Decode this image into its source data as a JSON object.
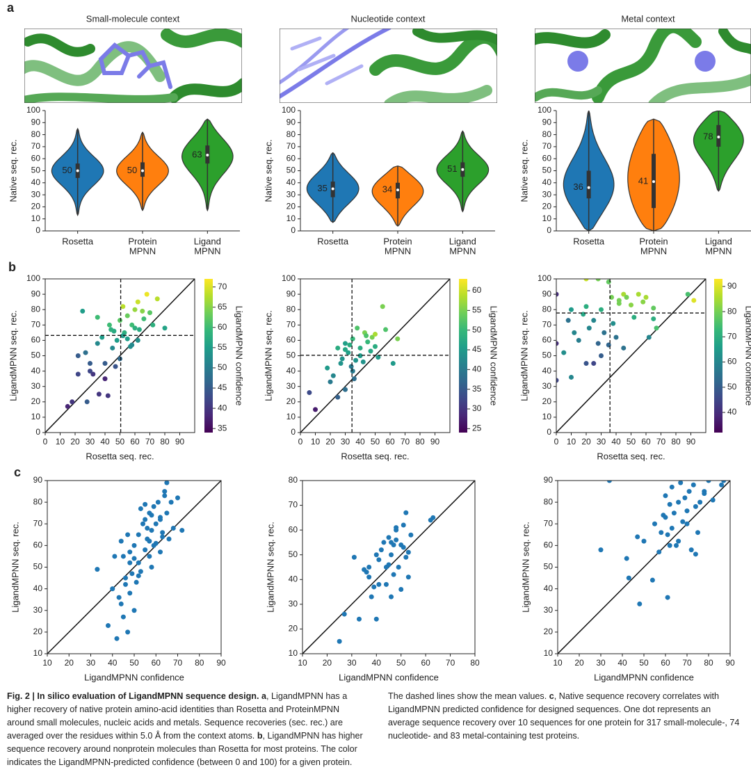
{
  "panel_labels": [
    "a",
    "b",
    "c"
  ],
  "contexts": [
    "Small-molecule context",
    "Nucleotide context",
    "Metal context"
  ],
  "chart_data": [
    {
      "type": "violin",
      "ylabel": "Native seq. rec.",
      "categories": [
        "Rosetta",
        [
          "Protein",
          "MPNN"
        ],
        [
          "Ligand",
          "MPNN"
        ]
      ],
      "values": [
        50,
        50,
        63
      ],
      "whisker_low": [
        13,
        17,
        17
      ],
      "q1": [
        44,
        45,
        56
      ],
      "q3": [
        56,
        57,
        71
      ],
      "whisker_high": [
        85,
        82,
        93
      ],
      "colors": [
        "#1f77b4",
        "#ff7f0e",
        "#2ca02c"
      ],
      "ylim": [
        0,
        100
      ],
      "yticks": [
        0,
        10,
        20,
        30,
        40,
        50,
        60,
        70,
        80,
        90,
        100
      ]
    },
    {
      "type": "violin",
      "ylabel": "Native seq. rec.",
      "categories": [
        "Rosetta",
        [
          "Protein",
          "MPNN"
        ],
        [
          "Ligand",
          "MPNN"
        ]
      ],
      "values": [
        35,
        34,
        51
      ],
      "whisker_low": [
        7,
        4,
        16
      ],
      "q1": [
        28,
        27,
        45
      ],
      "q3": [
        41,
        40,
        57
      ],
      "whisker_high": [
        65,
        54,
        83
      ],
      "colors": [
        "#1f77b4",
        "#ff7f0e",
        "#2ca02c"
      ],
      "ylim": [
        0,
        100
      ],
      "yticks": [
        0,
        10,
        20,
        30,
        40,
        50,
        60,
        70,
        80,
        90,
        100
      ]
    },
    {
      "type": "violin",
      "ylabel": "Native seq. rec.",
      "categories": [
        "Rosetta",
        [
          "Protein",
          "MPNN"
        ],
        [
          "Ligand",
          "MPNN"
        ]
      ],
      "values": [
        36,
        41,
        78
      ],
      "whisker_low": [
        0,
        0,
        33
      ],
      "q1": [
        27,
        19,
        70
      ],
      "q3": [
        50,
        64,
        88
      ],
      "whisker_high": [
        100,
        93,
        100
      ],
      "colors": [
        "#1f77b4",
        "#ff7f0e",
        "#2ca02c"
      ],
      "ylim": [
        0,
        100
      ],
      "yticks": [
        0,
        10,
        20,
        30,
        40,
        50,
        60,
        70,
        80,
        90,
        100
      ]
    },
    {
      "type": "scatter",
      "xlabel": "Rosetta seq. rec.",
      "ylabel": "LigandMPNN seq. rec.",
      "colormap": "viridis",
      "identity_line": true,
      "x": [
        15,
        18,
        22,
        25,
        28,
        30,
        32,
        35,
        36,
        38,
        40,
        42,
        43,
        45,
        46,
        48,
        50,
        50,
        52,
        53,
        55,
        55,
        57,
        58,
        60,
        60,
        62,
        63,
        65,
        66,
        68,
        70,
        72,
        75,
        80,
        22,
        30,
        40,
        47,
        58,
        35,
        44,
        52,
        62,
        27
      ],
      "values": [
        17,
        20,
        38,
        79,
        20,
        45,
        38,
        58,
        25,
        62,
        45,
        24,
        70,
        55,
        66,
        60,
        73,
        48,
        82,
        65,
        61,
        76,
        56,
        70,
        80,
        68,
        85,
        67,
        79,
        74,
        90,
        78,
        70,
        87,
        68,
        50,
        40,
        35,
        43,
        57,
        75,
        67,
        63,
        60,
        52
      ],
      "c": [
        38,
        40,
        42,
        55,
        45,
        45,
        40,
        52,
        40,
        55,
        45,
        40,
        60,
        52,
        57,
        55,
        62,
        47,
        68,
        58,
        55,
        63,
        53,
        60,
        66,
        58,
        69,
        57,
        65,
        60,
        71,
        62,
        58,
        68,
        56,
        45,
        42,
        38,
        44,
        52,
        60,
        58,
        55,
        53,
        48
      ],
      "mean_x": 50.5,
      "mean_y": 63.2,
      "xlim": [
        0,
        100
      ],
      "xticks": [
        0,
        10,
        20,
        30,
        40,
        50,
        60,
        70,
        80,
        90
      ],
      "ylim": [
        0,
        100
      ],
      "yticks": [
        0,
        10,
        20,
        30,
        40,
        50,
        60,
        70,
        80,
        90,
        100
      ],
      "colorbar": {
        "label": "LigandMPNN confidence",
        "lim": [
          34,
          72
        ],
        "ticks": [
          35,
          40,
          45,
          50,
          55,
          60,
          65,
          70
        ]
      }
    },
    {
      "type": "scatter",
      "xlabel": "Rosetta seq. rec.",
      "ylabel": "LigandMPNN seq. rec.",
      "colormap": "viridis",
      "identity_line": true,
      "x": [
        6,
        10,
        18,
        20,
        22,
        25,
        27,
        28,
        30,
        30,
        32,
        33,
        34,
        35,
        35,
        37,
        38,
        40,
        40,
        42,
        43,
        45,
        47,
        48,
        50,
        50,
        52,
        55,
        57,
        62,
        65,
        25,
        36,
        44,
        30
      ],
      "values": [
        26,
        15,
        42,
        33,
        37,
        23,
        45,
        48,
        28,
        54,
        52,
        57,
        43,
        40,
        61,
        47,
        68,
        50,
        55,
        46,
        65,
        59,
        53,
        62,
        56,
        64,
        49,
        82,
        67,
        45,
        61,
        55,
        35,
        63,
        58
      ],
      "c": [
        33,
        27,
        45,
        40,
        42,
        36,
        44,
        44,
        38,
        47,
        46,
        48,
        40,
        40,
        50,
        44,
        52,
        45,
        48,
        44,
        55,
        50,
        47,
        55,
        48,
        58,
        45,
        55,
        52,
        45,
        55,
        48,
        38,
        52,
        46
      ],
      "mean_x": 34.5,
      "mean_y": 50.3,
      "xlim": [
        0,
        100
      ],
      "xticks": [
        0,
        10,
        20,
        30,
        40,
        50,
        60,
        70,
        80,
        90
      ],
      "ylim": [
        0,
        100
      ],
      "yticks": [
        0,
        10,
        20,
        30,
        40,
        50,
        60,
        70,
        80,
        90,
        100
      ],
      "colorbar": {
        "label": "LigandMPNN confidence",
        "lim": [
          24,
          63
        ],
        "ticks": [
          25,
          30,
          35,
          40,
          45,
          50,
          55,
          60
        ]
      }
    },
    {
      "type": "scatter",
      "xlabel": "Rosetta seq. rec.",
      "ylabel": "LigandMPNN seq. rec.",
      "colormap": "viridis",
      "identity_line": true,
      "x": [
        0,
        0,
        0,
        5,
        8,
        10,
        12,
        15,
        18,
        20,
        20,
        22,
        25,
        25,
        28,
        30,
        30,
        32,
        35,
        35,
        37,
        38,
        40,
        42,
        45,
        45,
        47,
        50,
        52,
        55,
        58,
        60,
        62,
        65,
        67,
        20,
        28,
        42,
        88,
        92,
        65,
        10
      ],
      "values": [
        34,
        58,
        90,
        52,
        73,
        36,
        65,
        60,
        77,
        45,
        82,
        68,
        45,
        73,
        58,
        50,
        80,
        65,
        57,
        98,
        88,
        71,
        62,
        86,
        55,
        90,
        88,
        83,
        75,
        90,
        85,
        88,
        62,
        81,
        68,
        100,
        100,
        84,
        90,
        86,
        74,
        80
      ],
      "c": [
        45,
        40,
        40,
        62,
        55,
        60,
        60,
        58,
        68,
        48,
        70,
        60,
        45,
        60,
        52,
        50,
        70,
        55,
        52,
        78,
        80,
        62,
        55,
        80,
        55,
        85,
        80,
        82,
        70,
        85,
        82,
        85,
        60,
        78,
        75,
        88,
        80,
        80,
        75,
        90,
        70,
        65
      ],
      "mean_x": 35.9,
      "mean_y": 77.8,
      "xlim": [
        0,
        100
      ],
      "xticks": [
        0,
        10,
        20,
        30,
        40,
        50,
        60,
        70,
        80,
        90
      ],
      "ylim": [
        0,
        100
      ],
      "yticks": [
        0,
        10,
        20,
        30,
        40,
        50,
        60,
        70,
        80,
        90,
        100
      ],
      "colorbar": {
        "label": "LigandMPNN confidence",
        "lim": [
          32,
          93
        ],
        "ticks": [
          40,
          50,
          60,
          70,
          80,
          90
        ]
      }
    },
    {
      "type": "scatter",
      "xlabel": "LigandMPNN confidence",
      "ylabel": "LigandMPNN seq. rec.",
      "color": "#1f77b4",
      "identity_line": true,
      "x": [
        33,
        38,
        40,
        42,
        43,
        44,
        45,
        45,
        46,
        47,
        48,
        48,
        49,
        50,
        50,
        51,
        52,
        52,
        53,
        54,
        55,
        55,
        56,
        57,
        57,
        58,
        58,
        59,
        60,
        60,
        61,
        62,
        62,
        63,
        64,
        65,
        65,
        66,
        67,
        68,
        70,
        72,
        44,
        47,
        50,
        53,
        56,
        59,
        62,
        46,
        52,
        58,
        64,
        55,
        48,
        41,
        63,
        57
      ],
      "values": [
        49,
        23,
        40,
        17,
        36,
        33,
        27,
        55,
        45,
        20,
        38,
        57,
        47,
        30,
        60,
        43,
        52,
        65,
        48,
        70,
        58,
        72,
        63,
        55,
        75,
        50,
        67,
        78,
        61,
        70,
        80,
        57,
        73,
        66,
        83,
        89,
        75,
        63,
        80,
        68,
        82,
        67,
        62,
        65,
        54,
        77,
        68,
        60,
        72,
        42,
        46,
        74,
        85,
        79,
        52,
        55,
        64,
        62
      ],
      "xlim": [
        10,
        90
      ],
      "xticks": [
        10,
        20,
        30,
        40,
        50,
        60,
        70,
        80,
        90
      ],
      "ylim": [
        10,
        90
      ],
      "yticks": [
        10,
        20,
        30,
        40,
        50,
        60,
        70,
        80,
        90
      ]
    },
    {
      "type": "scatter",
      "xlabel": "LigandMPNN confidence",
      "ylabel": "LigandMPNN seq. rec.",
      "color": "#1f77b4",
      "identity_line": true,
      "x": [
        25,
        27,
        31,
        33,
        35,
        36,
        37,
        38,
        39,
        40,
        40,
        41,
        42,
        43,
        44,
        45,
        45,
        46,
        46,
        47,
        47,
        48,
        48,
        49,
        50,
        50,
        51,
        52,
        52,
        53,
        53,
        54,
        62,
        63,
        41,
        44,
        48,
        51,
        37,
        46
      ],
      "values": [
        15,
        26,
        49,
        24,
        44,
        43,
        41,
        33,
        37,
        24,
        50,
        48,
        52,
        55,
        38,
        57,
        46,
        33,
        50,
        54,
        42,
        60,
        56,
        45,
        36,
        54,
        62,
        49,
        67,
        51,
        41,
        58,
        64,
        65,
        38,
        45,
        61,
        53,
        45,
        55
      ],
      "xlim": [
        10,
        80
      ],
      "xticks": [
        10,
        20,
        30,
        40,
        50,
        60,
        70,
        80
      ],
      "ylim": [
        10,
        80
      ],
      "yticks": [
        10,
        20,
        30,
        40,
        50,
        60,
        70,
        80
      ]
    },
    {
      "type": "scatter",
      "xlabel": "LigandMPNN confidence",
      "ylabel": "LigandMPNN seq. rec.",
      "color": "#1f77b4",
      "identity_line": true,
      "x": [
        30,
        34,
        42,
        43,
        47,
        48,
        50,
        54,
        55,
        57,
        58,
        59,
        60,
        61,
        61,
        62,
        63,
        63,
        64,
        65,
        66,
        67,
        68,
        69,
        70,
        71,
        72,
        73,
        74,
        75,
        76,
        78,
        80,
        82,
        86,
        87,
        60,
        66,
        70,
        74,
        78,
        62
      ],
      "values": [
        58,
        90,
        54,
        45,
        64,
        33,
        62,
        44,
        70,
        57,
        66,
        74,
        83,
        65,
        36,
        79,
        68,
        87,
        75,
        60,
        80,
        89,
        71,
        82,
        76,
        85,
        58,
        88,
        56,
        66,
        80,
        85,
        90,
        81,
        88,
        90,
        73,
        62,
        70,
        78,
        84,
        60
      ],
      "xlim": [
        10,
        90
      ],
      "xticks": [
        10,
        20,
        30,
        40,
        50,
        60,
        70,
        80,
        90
      ],
      "ylim": [
        10,
        90
      ],
      "yticks": [
        10,
        20,
        30,
        40,
        50,
        60,
        70,
        80,
        90
      ]
    }
  ],
  "caption": {
    "title": "Fig. 2 | In silico evaluation of LigandMPNN sequence design.",
    "parts": [
      {
        "label": "a",
        "text": ", LigandMPNN has a higher recovery of native protein amino-acid identities than Rosetta and ProteinMPNN around small molecules, nucleic acids and metals. Sequence recoveries (sec. rec.) are averaged over the residues within 5.0 Å from the context atoms. "
      },
      {
        "label": "b",
        "text": ", LigandMPNN has higher sequence recovery around nonprotein molecules than Rosetta for most proteins. The color indicates the LigandMPNN-predicted confidence (between 0 and 100) for a given protein. The dashed lines show the mean values. "
      },
      {
        "label": "c",
        "text": ", Native sequence recovery correlates with LigandMPNN predicted confidence for designed sequences. One dot represents an average sequence recovery over 10 sequences for one protein for 317 small-molecule-, 74 nucleotide- and 83 metal-containing test proteins."
      }
    ]
  }
}
